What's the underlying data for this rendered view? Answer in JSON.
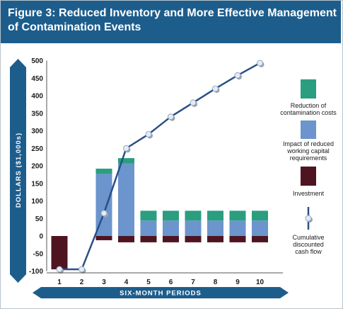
{
  "figure": {
    "title": "Figure 3: Reduced Inventory and More Effective Management of Contamination Events"
  },
  "chart_data": {
    "type": "bar",
    "title": "Figure 3: Reduced Inventory and More Effective Management of Contamination Events",
    "xlabel": "SIX-MONTH PERIODS",
    "ylabel": "DOLLARS ($1,000s)",
    "categories": [
      "1",
      "2",
      "3",
      "4",
      "5",
      "6",
      "7",
      "8",
      "9",
      "10"
    ],
    "ylim": [
      -100,
      500
    ],
    "yticks": [
      500,
      450,
      400,
      350,
      300,
      250,
      200,
      150,
      100,
      50,
      0,
      -50,
      -100
    ],
    "stacked": true,
    "grid": false,
    "legend_position": "right",
    "series": [
      {
        "name": "Reduction of contamination costs",
        "color": "#2a9e7f",
        "values": [
          0,
          0,
          15,
          15,
          28,
          28,
          28,
          28,
          28,
          28
        ]
      },
      {
        "name": "Impact of reduced working capital requirements",
        "color": "#6b95cc",
        "values": [
          0,
          0,
          177,
          207,
          44,
          44,
          44,
          44,
          44,
          44
        ]
      },
      {
        "name": "Investment",
        "color": "#4e1520",
        "values": [
          -95,
          0,
          -12,
          -18,
          -18,
          -18,
          -18,
          -18,
          -18,
          -18
        ]
      },
      {
        "name": "Cumulative discounted cash flow",
        "color": "#2b4f86",
        "type": "line",
        "values": [
          -95,
          -95,
          65,
          250,
          290,
          340,
          380,
          420,
          458,
          493
        ]
      }
    ]
  }
}
